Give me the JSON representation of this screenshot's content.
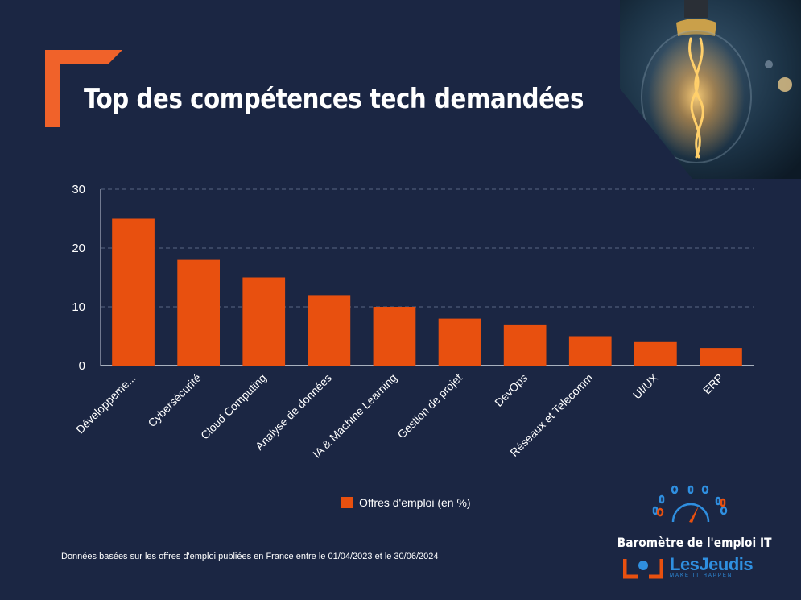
{
  "header": {
    "title": "Top des compétences tech demandées"
  },
  "chart_data": {
    "type": "bar",
    "title": "Top des compétences tech demandées",
    "categories": [
      "Développeme...",
      "Cybersécurité",
      "Cloud Computing",
      "Analyse de données",
      "IA & Machine Learning",
      "Gestion de projet",
      "DevOps",
      "Réseaux et Telecomm",
      "UI/UX",
      "ERP"
    ],
    "series": [
      {
        "name": "Offres d'emploi (en %)",
        "values": [
          25,
          18,
          15,
          12,
          10,
          8,
          7,
          5,
          4,
          3
        ]
      }
    ],
    "ylim": [
      0,
      30
    ],
    "yticks": [
      0,
      10,
      20,
      30
    ],
    "xlabel": "",
    "ylabel": "",
    "grid": true,
    "legend_position": "bottom",
    "bar_color": "#e8500f"
  },
  "legend": {
    "label": "Offres d'emploi (en %)"
  },
  "footer": {
    "source": "Données basées sur les  offres d'emploi publiées en France entre le 01/04/2023 et le 30/06/2024"
  },
  "brand": {
    "title": "Baromètre de l'emploi IT",
    "logo_text": "LesJeudis",
    "tagline": "MAKE IT HAPPEN",
    "accent_color": "#2f8fe0"
  },
  "colors": {
    "background": "#1b2643",
    "accent": "#e8500f",
    "text": "#ffffff",
    "grid": "#5a6683"
  }
}
